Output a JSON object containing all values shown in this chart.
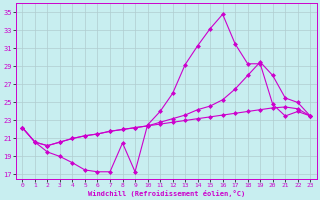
{
  "xlabel": "Windchill (Refroidissement éolien,°C)",
  "bg_color": "#c8eef0",
  "line_color": "#cc00cc",
  "grid_color": "#b0ccd0",
  "xlim_min": -0.5,
  "xlim_max": 23.5,
  "ylim_min": 16.5,
  "ylim_max": 36.0,
  "yticks": [
    17,
    19,
    21,
    23,
    25,
    27,
    29,
    31,
    33,
    35
  ],
  "xticks": [
    0,
    1,
    2,
    3,
    4,
    5,
    6,
    7,
    8,
    9,
    10,
    11,
    12,
    13,
    14,
    15,
    16,
    17,
    18,
    19,
    20,
    21,
    22,
    23
  ],
  "line1_x": [
    0,
    1,
    2,
    3,
    4,
    5,
    6,
    7,
    8,
    9,
    10,
    11,
    12,
    13,
    14,
    15,
    16,
    17,
    18,
    19,
    20,
    21,
    22,
    23
  ],
  "line1_y": [
    22.2,
    20.6,
    19.5,
    19.0,
    18.3,
    17.5,
    17.3,
    17.3,
    20.5,
    17.3,
    22.5,
    24.0,
    26.0,
    29.2,
    31.3,
    33.2,
    34.8,
    31.5,
    29.3,
    29.3,
    24.8,
    23.5,
    24.0,
    23.5
  ],
  "line2_x": [
    0,
    1,
    2,
    3,
    4,
    5,
    6,
    7,
    8,
    9,
    10,
    11,
    12,
    13,
    14,
    15,
    16,
    17,
    18,
    19,
    20,
    21,
    22,
    23
  ],
  "line2_y": [
    22.2,
    20.6,
    20.2,
    20.6,
    21.0,
    21.3,
    21.5,
    21.8,
    22.0,
    22.2,
    22.4,
    22.6,
    22.8,
    23.0,
    23.2,
    23.4,
    23.6,
    23.8,
    24.0,
    24.2,
    24.4,
    24.5,
    24.3,
    23.5
  ],
  "line3_x": [
    0,
    1,
    2,
    3,
    4,
    5,
    6,
    7,
    8,
    9,
    10,
    11,
    12,
    13,
    14,
    15,
    16,
    17,
    18,
    19,
    20,
    21,
    22,
    23
  ],
  "line3_y": [
    22.2,
    20.6,
    20.2,
    20.6,
    21.0,
    21.3,
    21.5,
    21.8,
    22.0,
    22.2,
    22.4,
    22.8,
    23.2,
    23.6,
    24.2,
    24.6,
    25.3,
    26.5,
    28.0,
    29.5,
    28.0,
    25.5,
    25.0,
    23.5
  ]
}
